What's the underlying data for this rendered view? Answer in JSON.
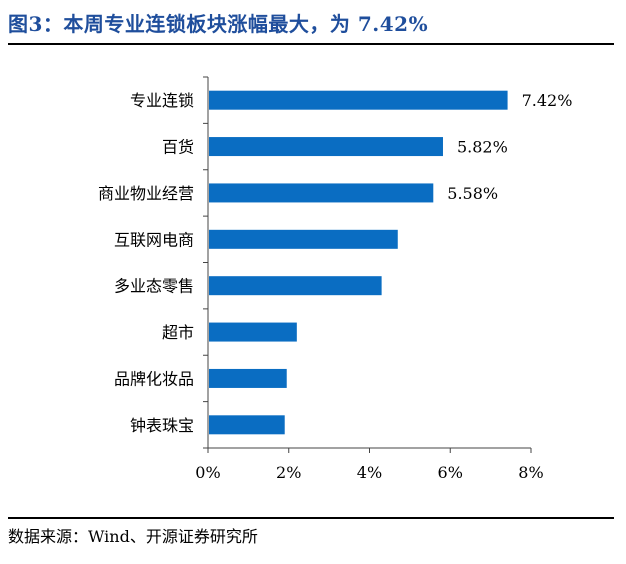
{
  "header": {
    "title": "图3：本周专业连锁板块涨幅最大，为 7.42%"
  },
  "footer": {
    "source": "数据来源：Wind、开源证券研究所"
  },
  "colors": {
    "bar": "#0a6dc2",
    "title": "#1f4e9c"
  },
  "chart_data": {
    "type": "bar",
    "orientation": "horizontal",
    "categories": [
      "专业连锁",
      "百货",
      "商业物业经营",
      "互联网电商",
      "多业态零售",
      "超市",
      "品牌化妆品",
      "钟表珠宝"
    ],
    "values": [
      7.42,
      5.82,
      5.58,
      4.7,
      4.3,
      2.2,
      1.95,
      1.9
    ],
    "data_labels": [
      "7.42%",
      "5.82%",
      "5.58%",
      "",
      "",
      "",
      "",
      ""
    ],
    "xlim": [
      0,
      8
    ],
    "x_ticks": [
      "0%",
      "2%",
      "4%",
      "6%",
      "8%"
    ],
    "x_tick_values": [
      0,
      2,
      4,
      6,
      8
    ],
    "grid": false,
    "xlabel": "",
    "ylabel": ""
  }
}
